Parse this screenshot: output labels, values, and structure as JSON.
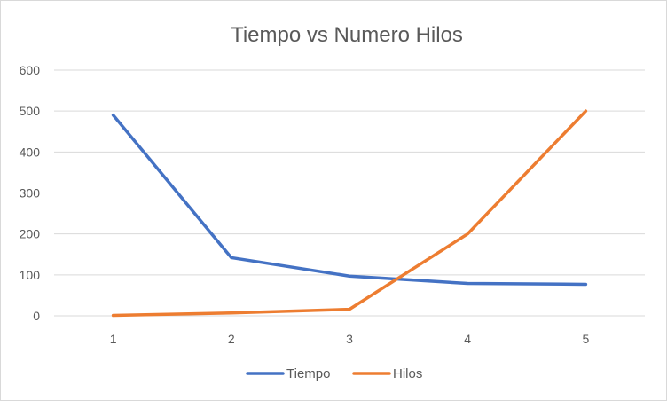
{
  "chart_data": {
    "type": "line",
    "title": "Tiempo vs Numero Hilos",
    "categories": [
      "1",
      "2",
      "3",
      "4",
      "5"
    ],
    "series": [
      {
        "name": "Tiempo",
        "color": "#4472c4",
        "values": [
          490,
          142,
          97,
          79,
          77
        ]
      },
      {
        "name": "Hilos",
        "color": "#ed7d31",
        "values": [
          1,
          7,
          16,
          200,
          500
        ]
      }
    ],
    "ylim": [
      0,
      600
    ],
    "yticks": [
      "0",
      "100",
      "200",
      "300",
      "400",
      "500",
      "600"
    ],
    "grid": true,
    "legend": "bottom"
  }
}
